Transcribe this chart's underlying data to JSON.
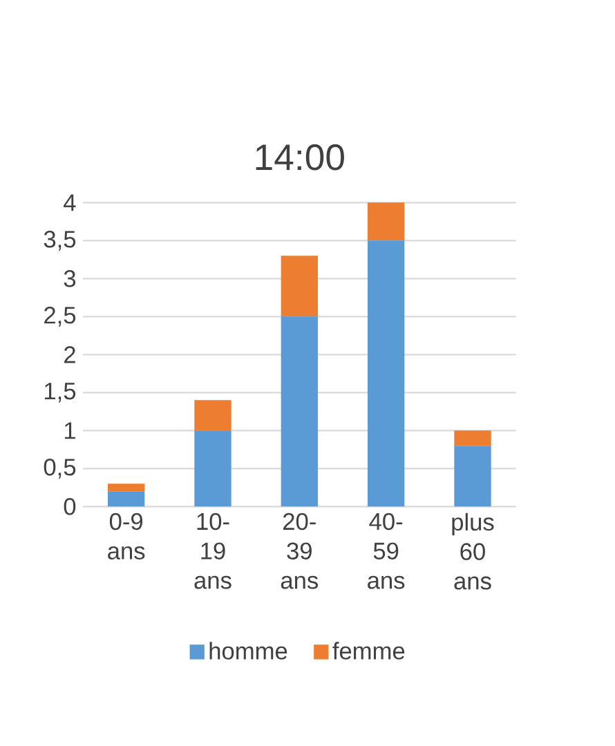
{
  "chart_data": {
    "type": "bar",
    "title": "14:00",
    "stacked": true,
    "categories": [
      "0-9 ans",
      "10-19 ans",
      "20-39 ans",
      "40-59 ans",
      "plus 60 ans"
    ],
    "series": [
      {
        "name": "homme",
        "color": "#5b9bd5",
        "values": [
          0.2,
          1.0,
          2.5,
          3.5,
          0.8
        ]
      },
      {
        "name": "femme",
        "color": "#ed7d31",
        "values": [
          0.1,
          0.4,
          0.8,
          0.5,
          0.2
        ]
      }
    ],
    "ylim": [
      0,
      4
    ],
    "yticks": [
      0,
      {
        "value": 0.5,
        "label": "0,5"
      },
      1,
      {
        "value": 1.5,
        "label": "1,5"
      },
      2,
      {
        "value": 2.5,
        "label": "2,5"
      },
      3,
      {
        "value": 3.5,
        "label": "3,5"
      },
      4
    ],
    "grid": "y",
    "legend": "bottom"
  }
}
